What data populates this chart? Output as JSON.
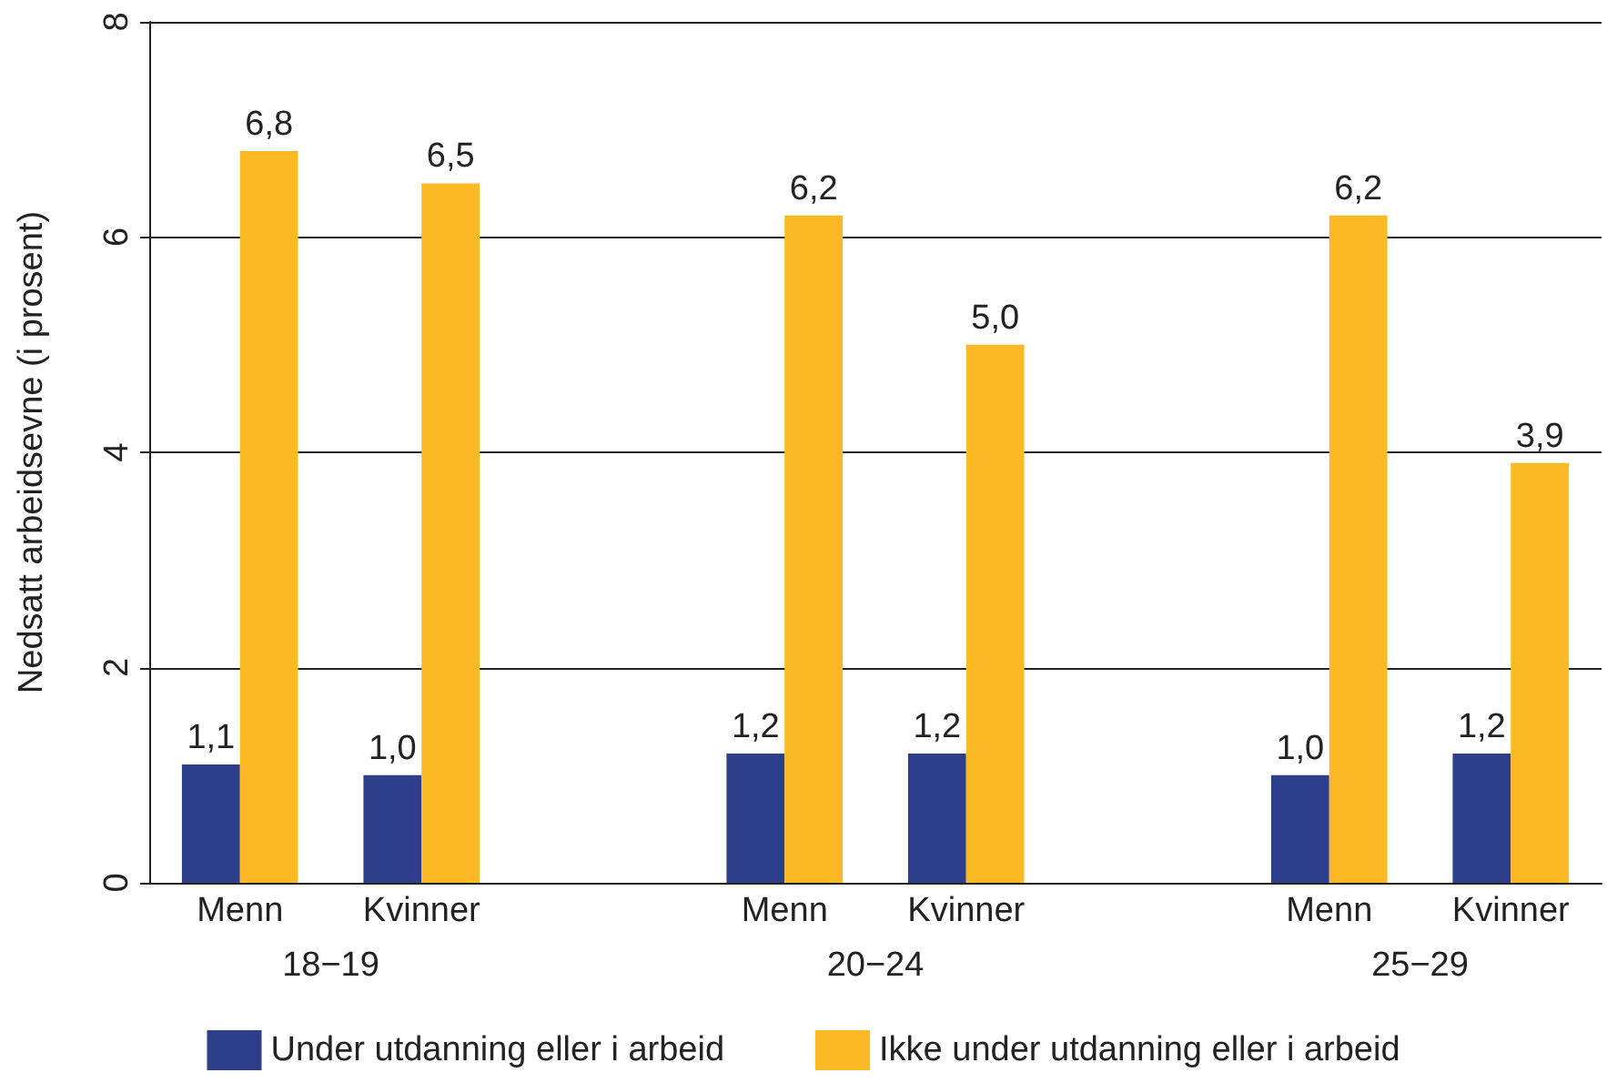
{
  "chart_data": {
    "type": "bar",
    "ylabel": "Nedsatt arbeidsevne (i prosent)",
    "categories": [
      "Menn",
      "Kvinner",
      null,
      "Menn",
      "Kvinner",
      null,
      "Menn",
      "Kvinner"
    ],
    "annotations": [
      "18−19",
      "20−24",
      "25−29"
    ],
    "series": [
      {
        "name": "Under utdanning eller i arbeid",
        "color": "#2e3f8a",
        "values": [
          1.1,
          1.0,
          null,
          1.2,
          1.2,
          null,
          1.0,
          1.2
        ],
        "value_labels": [
          "1,1",
          "1,0",
          null,
          "1,2",
          "1,2",
          null,
          "1,0",
          "1,2"
        ]
      },
      {
        "name": "Ikke under utdanning eller i arbeid",
        "color": "#fbb923",
        "values": [
          6.8,
          6.5,
          null,
          6.2,
          5.0,
          null,
          6.2,
          3.9
        ],
        "value_labels": [
          "6,8",
          "6,5",
          null,
          "6,2",
          "5,0",
          null,
          "6,2",
          "3,9"
        ]
      }
    ],
    "ylim": [
      0,
      8
    ],
    "yticks": [
      0,
      2,
      4,
      6,
      8
    ],
    "grid": "y",
    "legend": "bottom"
  }
}
